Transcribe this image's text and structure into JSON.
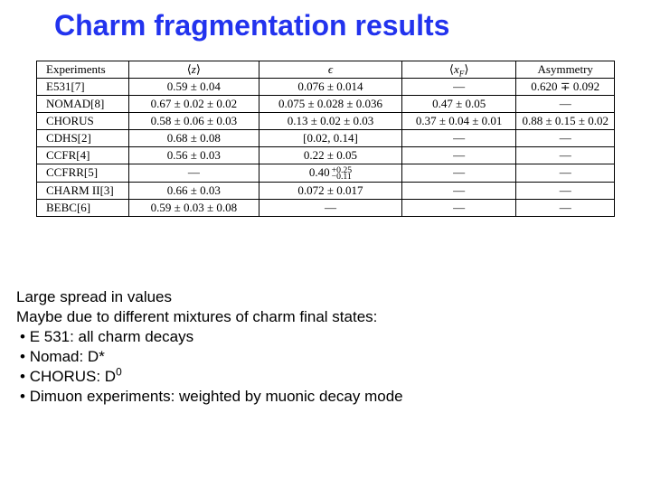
{
  "title": "Charm fragmentation results",
  "table": {
    "headers": {
      "exp": "Experiments",
      "z": "⟨z⟩",
      "eps": "ϵ",
      "xf": "⟨x_F⟩",
      "asym": "Asymmetry"
    },
    "rows": [
      {
        "exp": "E531[7]",
        "z": "0.59 ± 0.04",
        "eps": "0.076 ± 0.014",
        "xf": "—",
        "asym": "0.620 ∓ 0.092"
      },
      {
        "exp": "NOMAD[8]",
        "z": "0.67 ± 0.02 ± 0.02",
        "eps": "0.075 ± 0.028 ± 0.036",
        "xf": "0.47 ± 0.05",
        "asym": "—"
      },
      {
        "exp": "CHORUS",
        "z": "0.58 ± 0.06 ± 0.03",
        "eps": "0.13 ± 0.02 ± 0.03",
        "xf": "0.37 ± 0.04 ± 0.01",
        "asym": "0.88 ± 0.15 ± 0.02"
      },
      {
        "exp": "CDHS[2]",
        "z": "0.68 ± 0.08",
        "eps": "[0.02, 0.14]",
        "xf": "—",
        "asym": "—"
      },
      {
        "exp": "CCFR[4]",
        "z": "0.56 ± 0.03",
        "eps": "0.22 ± 0.05",
        "xf": "—",
        "asym": "—"
      },
      {
        "exp": "CCFRR[5]",
        "z": "—",
        "eps": "FRAC:+0.25:−0.11:0.40",
        "xf": "—",
        "asym": "—"
      },
      {
        "exp": "CHARM II[3]",
        "z": "0.66 ± 0.03",
        "eps": "0.072 ± 0.017",
        "xf": "—",
        "asym": "—"
      },
      {
        "exp": "BEBC[6]",
        "z": "0.59 ± 0.03 ± 0.08",
        "eps": "—",
        "xf": "—",
        "asym": "—"
      }
    ]
  },
  "commentary": {
    "line1": "Large spread in values",
    "line2": "Maybe due to different mixtures of charm final states:",
    "bullets": [
      "E 531: all charm decays",
      "Nomad: D*",
      "CHORUS: D⁰",
      "Dimuon experiments: weighted by muonic decay mode"
    ]
  },
  "colors": {
    "title": "#2233ee",
    "text": "#000000",
    "bg": "#ffffff",
    "border": "#000000"
  }
}
